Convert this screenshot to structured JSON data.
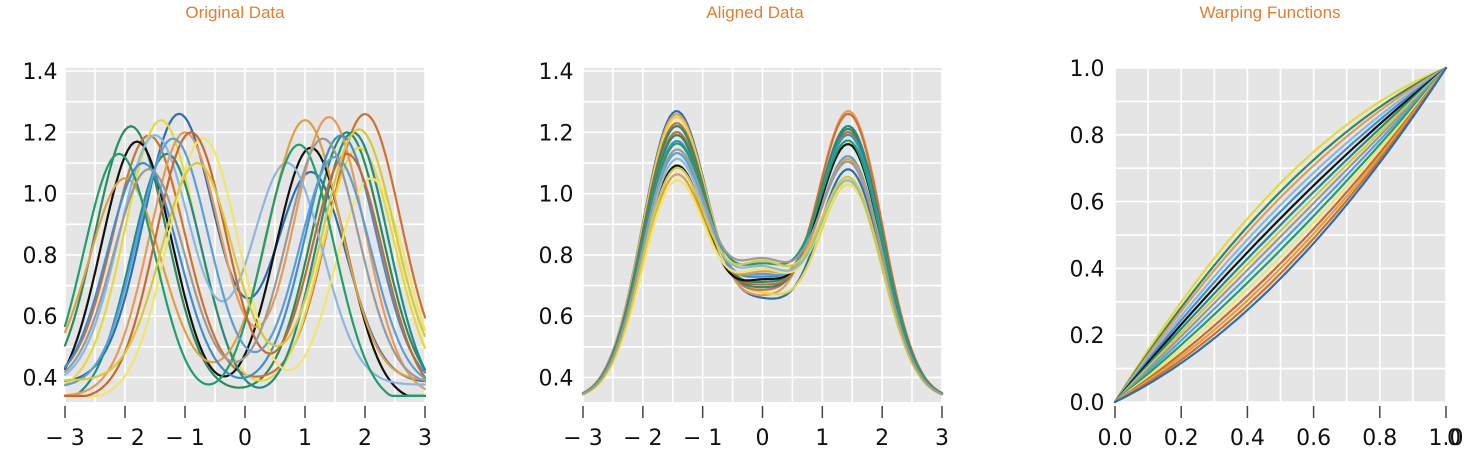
{
  "chart_data": [
    {
      "type": "line",
      "title": "Original Data",
      "xlabel": "",
      "ylabel": "",
      "xlim": [
        -3,
        3
      ],
      "ylim": [
        0.32,
        1.41
      ],
      "xticks": [
        -3,
        -2,
        -1,
        0,
        1,
        2,
        3
      ],
      "xtick_labels": [
        "− 3",
        "− 2",
        "− 1",
        "0",
        "1",
        "2",
        "3"
      ],
      "yticks": [
        0.4,
        0.6,
        0.8,
        1.0,
        1.2,
        1.4
      ],
      "ytick_labels": [
        "0.4",
        "0.6",
        "0.8",
        "1.0",
        "1.2",
        "1.4"
      ],
      "grid": true,
      "background": "#e5e5e5",
      "curve_model": "bimodal: y = 0.35 + (a1-0.35)*exp(-(x-p1)^2/0.7) + (a2-0.35)*exp(-(x-p2)^2/0.7), with a1 = peak1, a2 = peak2",
      "series": [
        {
          "color": "#2a8c5e",
          "peak1": 1.22,
          "pos1": -1.9,
          "peak2": 1.2,
          "pos2": 1.7
        },
        {
          "color": "#2a6fb5",
          "peak1": 1.26,
          "pos1": -1.1,
          "peak2": 1.07,
          "pos2": 1.1
        },
        {
          "color": "#d1712b",
          "peak1": 1.19,
          "pos1": -1.6,
          "peak2": 1.26,
          "pos2": 2.0
        },
        {
          "color": "#e8d93a",
          "peak1": 1.24,
          "pos1": -1.4,
          "peak2": 1.15,
          "pos2": 1.9
        },
        {
          "color": "#111111",
          "peak1": 1.17,
          "pos1": -1.8,
          "peak2": 1.15,
          "pos2": 1.1
        },
        {
          "color": "#1e8c8c",
          "peak1": 1.13,
          "pos1": -1.3,
          "peak2": 1.2,
          "pos2": 1.8
        },
        {
          "color": "#e89a5a",
          "peak1": 1.2,
          "pos1": -1.0,
          "peak2": 1.25,
          "pos2": 1.4
        },
        {
          "color": "#8ab8e0",
          "peak1": 1.19,
          "pos1": -1.5,
          "peak2": 1.1,
          "pos2": 0.7
        },
        {
          "color": "#e0a040",
          "peak1": 1.05,
          "pos1": -2.0,
          "peak2": 1.24,
          "pos2": 1.0
        },
        {
          "color": "#3f8fd0",
          "peak1": 1.1,
          "pos1": -1.7,
          "peak2": 1.19,
          "pos2": 1.6
        },
        {
          "color": "#f0e66a",
          "peak1": 1.18,
          "pos1": -0.7,
          "peak2": 1.05,
          "pos2": 2.1
        },
        {
          "color": "#1f9e6e",
          "peak1": 1.13,
          "pos1": -2.1,
          "peak2": 1.16,
          "pos2": 0.9
        },
        {
          "color": "#c96a2c",
          "peak1": 1.2,
          "pos1": -0.9,
          "peak2": 1.13,
          "pos2": 1.7
        },
        {
          "color": "#5aa0d8",
          "peak1": 1.18,
          "pos1": -1.2,
          "peak2": 1.12,
          "pos2": 1.5
        },
        {
          "color": "#d9c93a",
          "peak1": 1.1,
          "pos1": -0.8,
          "peak2": 1.21,
          "pos2": 1.9
        },
        {
          "color": "#9a9a9a",
          "peak1": 1.08,
          "pos1": -1.6,
          "peak2": 1.18,
          "pos2": 1.3
        }
      ]
    },
    {
      "type": "line",
      "title": "Aligned Data",
      "xlabel": "",
      "ylabel": "",
      "xlim": [
        -3,
        3
      ],
      "ylim": [
        0.32,
        1.41
      ],
      "xticks": [
        -3,
        -2,
        -1,
        0,
        1,
        2,
        3
      ],
      "xtick_labels": [
        "− 3",
        "− 2",
        "− 1",
        "0",
        "1",
        "2",
        "3"
      ],
      "yticks": [
        0.4,
        0.6,
        0.8,
        1.0,
        1.2,
        1.4
      ],
      "ytick_labels": [
        "0.4",
        "0.6",
        "0.8",
        "1.0",
        "1.2",
        "1.4"
      ],
      "grid": true,
      "background": "#e5e5e5",
      "curve_model": "bimodal: peaks at x = -1.45 and x = 1.45, y = 0.33 at x = +/-3",
      "series": [
        {
          "color": "#2a6fb5",
          "peak1": 1.26,
          "peak2": 1.07
        },
        {
          "color": "#e89a5a",
          "peak1": 1.25,
          "peak2": 1.26
        },
        {
          "color": "#e8d93a",
          "peak1": 1.24,
          "peak2": 1.02
        },
        {
          "color": "#d1712b",
          "peak1": 1.22,
          "peak2": 1.25
        },
        {
          "color": "#1e8c8c",
          "peak1": 1.21,
          "peak2": 1.21
        },
        {
          "color": "#c96a2c",
          "peak1": 1.19,
          "peak2": 1.19
        },
        {
          "color": "#2a8c5e",
          "peak1": 1.18,
          "peak2": 1.2
        },
        {
          "color": "#111111",
          "peak1": 1.08,
          "peak2": 1.15
        },
        {
          "color": "#3f8fd0",
          "peak1": 1.16,
          "peak2": 1.18
        },
        {
          "color": "#5aa0d8",
          "peak1": 1.12,
          "peak2": 1.11
        },
        {
          "color": "#e0a040",
          "peak1": 1.05,
          "peak2": 1.1
        },
        {
          "color": "#f0e66a",
          "peak1": 1.03,
          "peak2": 1.02
        },
        {
          "color": "#8ab8e0",
          "peak1": 1.1,
          "peak2": 1.03
        },
        {
          "color": "#1f9e6e",
          "peak1": 1.15,
          "peak2": 1.16
        },
        {
          "color": "#d9c93a",
          "peak1": 1.07,
          "peak2": 1.04
        },
        {
          "color": "#9a9a9a",
          "peak1": 1.13,
          "peak2": 1.09
        }
      ],
      "valley": {
        "x": 0,
        "y_range": [
          0.66,
          0.79
        ]
      }
    },
    {
      "type": "line",
      "title": "Warping Functions",
      "xlabel": "",
      "ylabel": "",
      "xlim": [
        0,
        1
      ],
      "ylim": [
        0,
        1
      ],
      "xticks": [
        0.0,
        0.2,
        0.4,
        0.6,
        0.8,
        1.0
      ],
      "xtick_labels": [
        "0.0",
        "0.2",
        "0.4",
        "0.6",
        "0.8",
        "1.0"
      ],
      "yticks": [
        0.0,
        0.2,
        0.4,
        0.6,
        0.8,
        1.0
      ],
      "ytick_labels": [
        "0.0",
        "0.2",
        "0.4",
        "0.6",
        "0.8",
        "1.0"
      ],
      "grid": true,
      "background": "#e5e5e5",
      "curve_model": "gamma(t) = t + b*t*(1-t)",
      "series": [
        {
          "color": "#e8d93a",
          "b": 0.62
        },
        {
          "color": "#2a8c5e",
          "b": 0.52
        },
        {
          "color": "#e89a5a",
          "b": 0.45
        },
        {
          "color": "#8ab8e0",
          "b": 0.36
        },
        {
          "color": "#3f8fd0",
          "b": 0.28
        },
        {
          "color": "#111111",
          "b": 0.2
        },
        {
          "color": "#1e8c8c",
          "b": 0.12
        },
        {
          "color": "#d9c93a",
          "b": 0.05
        },
        {
          "color": "#9a9a9a",
          "b": -0.02
        },
        {
          "color": "#5aa0d8",
          "b": -0.1
        },
        {
          "color": "#1f9e6e",
          "b": -0.18
        },
        {
          "color": "#f0e66a",
          "b": -0.26
        },
        {
          "color": "#c96a2c",
          "b": -0.34
        },
        {
          "color": "#e0a040",
          "b": -0.4
        },
        {
          "color": "#d1712b",
          "b": -0.46
        },
        {
          "color": "#2a6fb5",
          "b": -0.52
        }
      ],
      "overlap_artifact": "0"
    }
  ]
}
